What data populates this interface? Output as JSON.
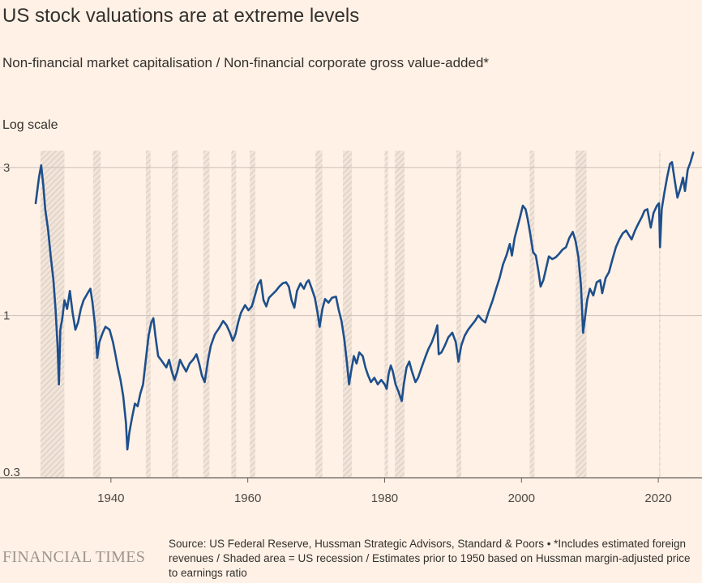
{
  "header": {
    "title": "US stock valuations are at extreme levels",
    "subtitle": "Non-financial market capitalisation / Non-financial corporate gross value-added*",
    "scale_note": "Log scale"
  },
  "footer": {
    "logo": "FINANCIAL TIMES",
    "source": "Source: US Federal Reserve, Hussman Strategic Advisors, Standard & Poors • *Includes estimated foreign revenues / Shaded area = US recession / Estimates prior to 1950 based on Hussman margin-adjusted price to earnings ratio"
  },
  "colors": {
    "background": "#FFF1E5",
    "line": "#1E4F8C",
    "grid": "#C9C0B8",
    "recession_hatch": "#D8CFC7"
  },
  "chart_data": {
    "type": "line",
    "y_scale": "log",
    "xlim": [
      1929.0,
      2025.2
    ],
    "ylim": [
      0.3,
      3.4
    ],
    "x_ticks": [
      1940,
      1960,
      1980,
      2000,
      2020
    ],
    "y_ticks": [
      0.3,
      1,
      3
    ],
    "y_tick_labels": [
      "0.3",
      "1",
      "3"
    ],
    "grid": "horizontal",
    "recessions": [
      [
        1929.7,
        1933.2
      ],
      [
        1937.4,
        1938.5
      ],
      [
        1945.1,
        1945.8
      ],
      [
        1948.9,
        1949.8
      ],
      [
        1953.5,
        1954.4
      ],
      [
        1957.6,
        1958.3
      ],
      [
        1960.3,
        1961.1
      ],
      [
        1969.9,
        1970.9
      ],
      [
        1973.9,
        1975.2
      ],
      [
        1980.0,
        1980.5
      ],
      [
        1981.5,
        1982.9
      ],
      [
        1990.5,
        1991.2
      ],
      [
        2001.2,
        2001.9
      ],
      [
        2007.9,
        2009.5
      ],
      [
        2020.1,
        2020.3
      ]
    ],
    "series": [
      {
        "points": [
          [
            1929.0,
            2.3
          ],
          [
            1929.5,
            2.8
          ],
          [
            1929.8,
            3.05
          ],
          [
            1930.1,
            2.65
          ],
          [
            1930.4,
            2.2
          ],
          [
            1930.8,
            1.9
          ],
          [
            1931.2,
            1.55
          ],
          [
            1931.6,
            1.3
          ],
          [
            1931.9,
            1.05
          ],
          [
            1932.2,
            0.8
          ],
          [
            1932.4,
            0.6
          ],
          [
            1932.6,
            0.9
          ],
          [
            1932.9,
            0.98
          ],
          [
            1933.2,
            1.12
          ],
          [
            1933.6,
            1.05
          ],
          [
            1934.0,
            1.2
          ],
          [
            1934.4,
            1.02
          ],
          [
            1934.8,
            0.9
          ],
          [
            1935.2,
            0.95
          ],
          [
            1935.6,
            1.05
          ],
          [
            1936.0,
            1.12
          ],
          [
            1936.6,
            1.18
          ],
          [
            1937.0,
            1.22
          ],
          [
            1937.3,
            1.1
          ],
          [
            1937.7,
            0.92
          ],
          [
            1938.0,
            0.73
          ],
          [
            1938.3,
            0.82
          ],
          [
            1938.8,
            0.88
          ],
          [
            1939.2,
            0.92
          ],
          [
            1939.8,
            0.9
          ],
          [
            1940.3,
            0.82
          ],
          [
            1940.6,
            0.76
          ],
          [
            1941.0,
            0.68
          ],
          [
            1941.4,
            0.62
          ],
          [
            1941.8,
            0.55
          ],
          [
            1942.2,
            0.45
          ],
          [
            1942.4,
            0.37
          ],
          [
            1942.7,
            0.42
          ],
          [
            1943.1,
            0.47
          ],
          [
            1943.5,
            0.52
          ],
          [
            1943.9,
            0.51
          ],
          [
            1944.3,
            0.56
          ],
          [
            1944.7,
            0.6
          ],
          [
            1945.1,
            0.72
          ],
          [
            1945.5,
            0.86
          ],
          [
            1945.9,
            0.95
          ],
          [
            1946.2,
            0.98
          ],
          [
            1946.5,
            0.86
          ],
          [
            1946.9,
            0.74
          ],
          [
            1947.3,
            0.72
          ],
          [
            1947.7,
            0.7
          ],
          [
            1948.1,
            0.68
          ],
          [
            1948.5,
            0.72
          ],
          [
            1948.9,
            0.66
          ],
          [
            1949.3,
            0.62
          ],
          [
            1949.7,
            0.66
          ],
          [
            1950.1,
            0.72
          ],
          [
            1950.5,
            0.69
          ],
          [
            1951.0,
            0.66
          ],
          [
            1951.5,
            0.7
          ],
          [
            1952.0,
            0.72
          ],
          [
            1952.5,
            0.75
          ],
          [
            1952.9,
            0.7
          ],
          [
            1953.3,
            0.64
          ],
          [
            1953.7,
            0.61
          ],
          [
            1954.2,
            0.72
          ],
          [
            1954.6,
            0.8
          ],
          [
            1955.2,
            0.87
          ],
          [
            1955.8,
            0.91
          ],
          [
            1956.4,
            0.96
          ],
          [
            1956.9,
            0.93
          ],
          [
            1957.4,
            0.88
          ],
          [
            1957.8,
            0.83
          ],
          [
            1958.2,
            0.87
          ],
          [
            1958.6,
            0.95
          ],
          [
            1959.0,
            1.02
          ],
          [
            1959.6,
            1.08
          ],
          [
            1960.1,
            1.04
          ],
          [
            1960.6,
            1.07
          ],
          [
            1961.0,
            1.15
          ],
          [
            1961.5,
            1.26
          ],
          [
            1961.9,
            1.3
          ],
          [
            1962.3,
            1.12
          ],
          [
            1962.7,
            1.07
          ],
          [
            1963.1,
            1.14
          ],
          [
            1963.6,
            1.17
          ],
          [
            1964.1,
            1.2
          ],
          [
            1964.6,
            1.24
          ],
          [
            1965.1,
            1.27
          ],
          [
            1965.6,
            1.28
          ],
          [
            1966.0,
            1.24
          ],
          [
            1966.4,
            1.12
          ],
          [
            1966.8,
            1.06
          ],
          [
            1967.2,
            1.2
          ],
          [
            1967.7,
            1.27
          ],
          [
            1968.2,
            1.22
          ],
          [
            1968.6,
            1.28
          ],
          [
            1968.9,
            1.3
          ],
          [
            1969.3,
            1.23
          ],
          [
            1969.8,
            1.14
          ],
          [
            1970.2,
            1.02
          ],
          [
            1970.5,
            0.92
          ],
          [
            1970.9,
            1.05
          ],
          [
            1971.3,
            1.13
          ],
          [
            1971.8,
            1.1
          ],
          [
            1972.3,
            1.14
          ],
          [
            1972.9,
            1.15
          ],
          [
            1973.3,
            1.04
          ],
          [
            1973.7,
            0.96
          ],
          [
            1974.1,
            0.84
          ],
          [
            1974.5,
            0.7
          ],
          [
            1974.8,
            0.6
          ],
          [
            1975.1,
            0.66
          ],
          [
            1975.5,
            0.74
          ],
          [
            1975.9,
            0.7
          ],
          [
            1976.3,
            0.76
          ],
          [
            1976.8,
            0.74
          ],
          [
            1977.2,
            0.68
          ],
          [
            1977.6,
            0.64
          ],
          [
            1978.0,
            0.61
          ],
          [
            1978.5,
            0.63
          ],
          [
            1979.0,
            0.6
          ],
          [
            1979.5,
            0.62
          ],
          [
            1980.0,
            0.6
          ],
          [
            1980.3,
            0.58
          ],
          [
            1980.6,
            0.65
          ],
          [
            1980.9,
            0.69
          ],
          [
            1981.2,
            0.66
          ],
          [
            1981.6,
            0.6
          ],
          [
            1982.0,
            0.57
          ],
          [
            1982.5,
            0.53
          ],
          [
            1982.8,
            0.6
          ],
          [
            1983.2,
            0.68
          ],
          [
            1983.6,
            0.71
          ],
          [
            1984.0,
            0.66
          ],
          [
            1984.5,
            0.61
          ],
          [
            1984.9,
            0.63
          ],
          [
            1985.4,
            0.68
          ],
          [
            1985.9,
            0.73
          ],
          [
            1986.4,
            0.78
          ],
          [
            1986.9,
            0.82
          ],
          [
            1987.4,
            0.88
          ],
          [
            1987.7,
            0.93
          ],
          [
            1987.9,
            0.75
          ],
          [
            1988.3,
            0.76
          ],
          [
            1988.8,
            0.8
          ],
          [
            1989.3,
            0.85
          ],
          [
            1989.9,
            0.88
          ],
          [
            1990.4,
            0.82
          ],
          [
            1990.8,
            0.71
          ],
          [
            1991.2,
            0.8
          ],
          [
            1991.7,
            0.86
          ],
          [
            1992.2,
            0.9
          ],
          [
            1992.7,
            0.93
          ],
          [
            1993.2,
            0.96
          ],
          [
            1993.7,
            1.0
          ],
          [
            1994.2,
            0.97
          ],
          [
            1994.7,
            0.95
          ],
          [
            1995.2,
            1.03
          ],
          [
            1995.8,
            1.12
          ],
          [
            1996.3,
            1.22
          ],
          [
            1996.8,
            1.32
          ],
          [
            1997.3,
            1.46
          ],
          [
            1997.8,
            1.56
          ],
          [
            1998.3,
            1.7
          ],
          [
            1998.6,
            1.56
          ],
          [
            1999.0,
            1.78
          ],
          [
            1999.4,
            1.92
          ],
          [
            1999.8,
            2.08
          ],
          [
            2000.2,
            2.26
          ],
          [
            2000.6,
            2.2
          ],
          [
            2000.9,
            2.05
          ],
          [
            2001.3,
            1.82
          ],
          [
            2001.7,
            1.6
          ],
          [
            2002.1,
            1.56
          ],
          [
            2002.5,
            1.38
          ],
          [
            2002.8,
            1.24
          ],
          [
            2003.2,
            1.3
          ],
          [
            2003.6,
            1.42
          ],
          [
            2004.0,
            1.55
          ],
          [
            2004.5,
            1.52
          ],
          [
            2005.0,
            1.54
          ],
          [
            2005.5,
            1.58
          ],
          [
            2006.0,
            1.63
          ],
          [
            2006.5,
            1.66
          ],
          [
            2007.0,
            1.78
          ],
          [
            2007.5,
            1.86
          ],
          [
            2007.9,
            1.74
          ],
          [
            2008.3,
            1.55
          ],
          [
            2008.7,
            1.25
          ],
          [
            2009.0,
            0.88
          ],
          [
            2009.2,
            0.95
          ],
          [
            2009.6,
            1.12
          ],
          [
            2010.0,
            1.22
          ],
          [
            2010.5,
            1.16
          ],
          [
            2011.0,
            1.28
          ],
          [
            2011.5,
            1.3
          ],
          [
            2011.8,
            1.18
          ],
          [
            2012.3,
            1.32
          ],
          [
            2012.8,
            1.38
          ],
          [
            2013.3,
            1.52
          ],
          [
            2013.8,
            1.66
          ],
          [
            2014.3,
            1.76
          ],
          [
            2014.8,
            1.84
          ],
          [
            2015.3,
            1.88
          ],
          [
            2015.8,
            1.8
          ],
          [
            2016.1,
            1.76
          ],
          [
            2016.6,
            1.88
          ],
          [
            2017.1,
            1.98
          ],
          [
            2017.6,
            2.08
          ],
          [
            2018.0,
            2.18
          ],
          [
            2018.4,
            2.2
          ],
          [
            2018.9,
            1.92
          ],
          [
            2019.3,
            2.14
          ],
          [
            2019.8,
            2.26
          ],
          [
            2020.1,
            2.3
          ],
          [
            2020.25,
            1.66
          ],
          [
            2020.5,
            2.2
          ],
          [
            2020.9,
            2.5
          ],
          [
            2021.3,
            2.8
          ],
          [
            2021.7,
            3.08
          ],
          [
            2022.0,
            3.12
          ],
          [
            2022.4,
            2.72
          ],
          [
            2022.8,
            2.4
          ],
          [
            2023.2,
            2.56
          ],
          [
            2023.6,
            2.78
          ],
          [
            2023.9,
            2.52
          ],
          [
            2024.3,
            2.95
          ],
          [
            2024.7,
            3.12
          ],
          [
            2025.1,
            3.35
          ]
        ]
      }
    ]
  }
}
